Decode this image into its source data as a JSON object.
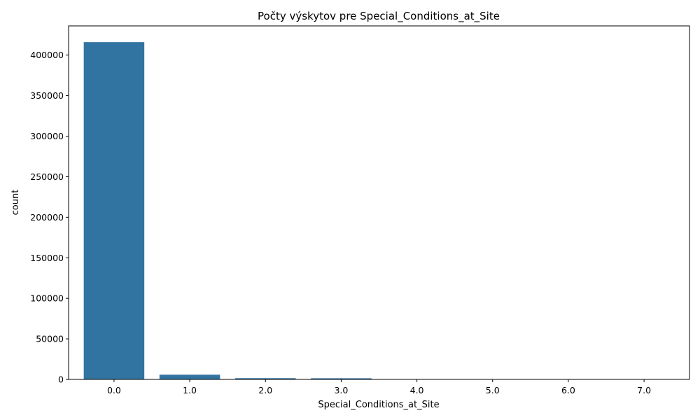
{
  "chart_data": {
    "type": "bar",
    "title": "Počty výskytov pre Special_Conditions_at_Site",
    "xlabel": "Special_Conditions_at_Site",
    "ylabel": "count",
    "categories": [
      "0.0",
      "1.0",
      "2.0",
      "3.0",
      "4.0",
      "5.0",
      "6.0",
      "7.0"
    ],
    "values": [
      416000,
      5800,
      1500,
      1400,
      400,
      400,
      300,
      300
    ],
    "ylim": [
      0,
      436000
    ],
    "yticks": [
      0,
      50000,
      100000,
      150000,
      200000,
      250000,
      300000,
      350000,
      400000
    ],
    "grid": false,
    "bar_color": "#3274a1"
  }
}
